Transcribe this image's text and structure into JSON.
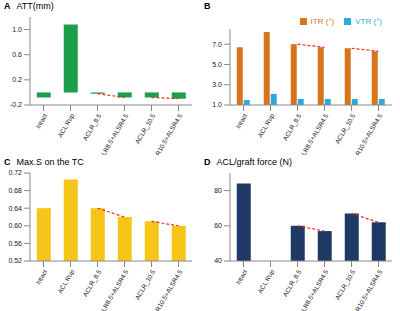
{
  "chart_data": [
    {
      "type": "bar",
      "panel": "A",
      "y_label": "ATT(mm)",
      "categories": [
        "Intact",
        "ACL Rup",
        "ACLR_8.5",
        "ACLR8.5+ALSR4.5",
        "ACLR_10.5",
        "ACLR10.5+ALSR4.5"
      ],
      "values": [
        -0.08,
        1.08,
        -0.02,
        -0.08,
        -0.08,
        -0.1
      ],
      "color": "#1e9e4a",
      "ylim": [
        -0.2,
        1.2
      ],
      "yticks": [
        -0.2,
        0.2,
        0.6,
        {
          "value": 1.0,
          "label": "1.0"
        }
      ]
    },
    {
      "type": "bar",
      "panel": "B",
      "categories": [
        "Intact",
        "ACL Rup",
        "ACLR_8.5",
        "ACLR8.5+ALSR4.5",
        "ACLR_10.5",
        "ACLR10.5+ALSR4.5"
      ],
      "series": [
        {
          "name": "ITR (°)",
          "color": "#d9731c",
          "values": [
            6.7,
            8.2,
            7.0,
            6.7,
            6.6,
            6.3
          ]
        },
        {
          "name": "VTR (°)",
          "color": "#2ea8e0",
          "values": [
            1.5,
            2.1,
            1.6,
            1.6,
            1.6,
            1.6
          ]
        }
      ],
      "legend": "upper right",
      "ylim": [
        1,
        8.5
      ],
      "yticks": [
        {
          "value": 1,
          "label": "1.0"
        },
        {
          "value": 3,
          "label": "3.0"
        },
        {
          "value": 5,
          "label": "5.0"
        },
        {
          "value": 7,
          "label": "7.0"
        }
      ]
    },
    {
      "type": "bar",
      "panel": "C",
      "y_label": "Max.S on the TC",
      "categories": [
        "Intact",
        "ACL Rup",
        "ACLR_8.5",
        "ACLR8.5+ALSR4.5",
        "ACLR_10.5",
        "ACLR10.5+ALSR4.5"
      ],
      "values": [
        0.64,
        0.705,
        0.64,
        0.62,
        0.61,
        0.6
      ],
      "color": "#f5c518",
      "ylim": [
        0.52,
        0.72
      ],
      "yticks": [
        0.52,
        0.56,
        {
          "value": 0.6,
          "label": "0.60"
        },
        0.64,
        0.68,
        0.72
      ]
    },
    {
      "type": "bar",
      "panel": "D",
      "y_label": "ACL/graft force (N)",
      "categories": [
        "Intact",
        "ACL Rup",
        "ACLR_8.5",
        "ACLR8.5+ALSR4.5",
        "ACLR_10.5",
        "ACLR10.5+ALSR4.5"
      ],
      "values": [
        84,
        null,
        60,
        57,
        67,
        62
      ],
      "color": "#203864",
      "ylim": [
        40,
        90
      ],
      "yticks": [
        40,
        60,
        80
      ]
    }
  ]
}
